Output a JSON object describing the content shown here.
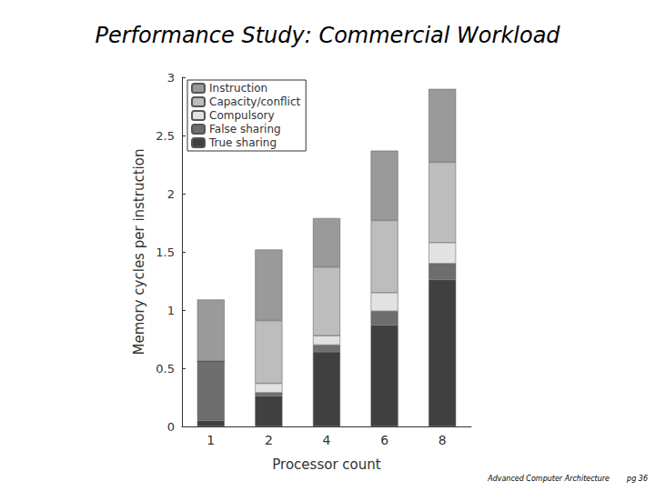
{
  "chart_data": {
    "type": "bar",
    "title": "Performance Study: Commercial Workload",
    "x_label": "Processor count",
    "y_label": "Memory cycles per instruction",
    "categories": [
      "1",
      "2",
      "4",
      "6",
      "8"
    ],
    "series": [
      {
        "name": "Instruction",
        "color": "#9a9a9a",
        "values": [
          0.53,
          0.61,
          0.42,
          0.6,
          0.63
        ]
      },
      {
        "name": "Capacity/conflict",
        "color": "#bdbdbd",
        "values": [
          0,
          0.54,
          0.59,
          0.62,
          0.69
        ]
      },
      {
        "name": "Compulsory",
        "color": "#e2e2e2",
        "values": [
          0,
          0.08,
          0.08,
          0.16,
          0.18
        ]
      },
      {
        "name": "False sharing",
        "color": "#6e6e6e",
        "values": [
          0.51,
          0.03,
          0.06,
          0.12,
          0.14
        ]
      },
      {
        "name": "True sharing",
        "color": "#404040",
        "values": [
          0.05,
          0.26,
          0.64,
          0.87,
          1.26
        ]
      }
    ],
    "stacked": true,
    "ylim": [
      0,
      3
    ],
    "yticks": [
      0,
      0.5,
      1,
      1.5,
      2,
      2.5,
      3
    ],
    "grid": false,
    "legend": "top-left",
    "footer": "Advanced Computer Architecture",
    "page": "pg 36"
  }
}
